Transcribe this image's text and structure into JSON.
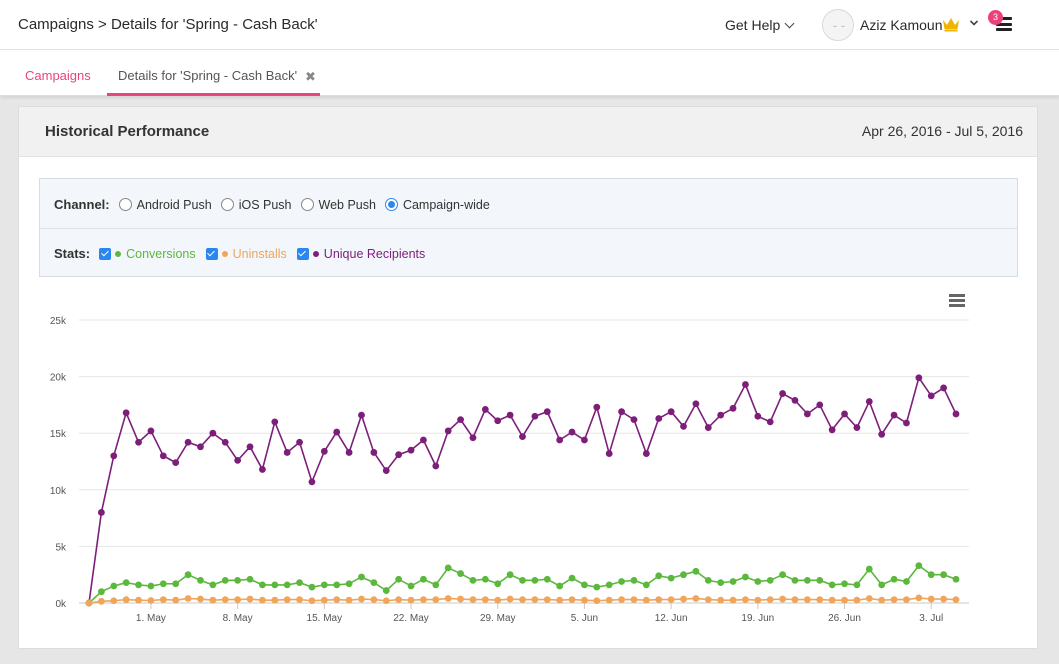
{
  "header": {
    "breadcrumb": "Campaigns > Details for 'Spring - Cash Back'",
    "help_label": "Get Help",
    "user_name": "Aziz Kamoun",
    "notification_count": "3"
  },
  "tabs": [
    {
      "label": "Campaigns"
    },
    {
      "label": "Details for 'Spring - Cash Back'"
    }
  ],
  "card": {
    "title": "Historical Performance",
    "date_range": "Apr 26, 2016 - Jul 5, 2016"
  },
  "filters": {
    "channel_label": "Channel:",
    "channels": [
      {
        "label": "Android Push",
        "selected": false
      },
      {
        "label": "iOS Push",
        "selected": false
      },
      {
        "label": "Web Push",
        "selected": false
      },
      {
        "label": "Campaign-wide",
        "selected": true
      }
    ],
    "stats_label": "Stats:",
    "stats": [
      {
        "label": "Conversions",
        "color": "#5bb83c",
        "checked": true
      },
      {
        "label": "Uninstalls",
        "color": "#f0a65a",
        "checked": true
      },
      {
        "label": "Unique Recipients",
        "color": "#7d1f7a",
        "checked": true
      }
    ]
  },
  "colors": {
    "accent": "#e8457a",
    "radio": "#2b87f0"
  },
  "chart_data": {
    "type": "line",
    "x_start": "2016-04-26",
    "y_ticks": [
      "0k",
      "5k",
      "10k",
      "15k",
      "20k",
      "25k"
    ],
    "ylim": [
      0,
      25000
    ],
    "x_ticks": [
      {
        "label": "1. May",
        "date": "2016-05-01"
      },
      {
        "label": "8. May",
        "date": "2016-05-08"
      },
      {
        "label": "15. May",
        "date": "2016-05-15"
      },
      {
        "label": "22. May",
        "date": "2016-05-22"
      },
      {
        "label": "29. May",
        "date": "2016-05-29"
      },
      {
        "label": "5. Jun",
        "date": "2016-06-05"
      },
      {
        "label": "12. Jun",
        "date": "2016-06-12"
      },
      {
        "label": "19. Jun",
        "date": "2016-06-19"
      },
      {
        "label": "26. Jun",
        "date": "2016-06-26"
      },
      {
        "label": "3. Jul",
        "date": "2016-07-03"
      }
    ],
    "series": [
      {
        "name": "Unique Recipients",
        "color": "#7d1f7a",
        "values": [
          0,
          8000,
          13000,
          16800,
          14200,
          15200,
          13000,
          12400,
          14200,
          13800,
          15000,
          14200,
          12600,
          13800,
          11800,
          16000,
          13300,
          14200,
          10700,
          13400,
          15100,
          13300,
          16600,
          13300,
          11700,
          13100,
          13500,
          14400,
          12100,
          15200,
          16200,
          14600,
          17100,
          16100,
          16600,
          14700,
          16500,
          16900,
          14400,
          15100,
          14400,
          17300,
          13200,
          16900,
          16200,
          13200,
          16300,
          16900,
          15600,
          17600,
          15500,
          16600,
          17200,
          19300,
          16500,
          16000,
          18500,
          17900,
          16700,
          17500,
          15300,
          16700,
          15500,
          17800,
          14900,
          16600,
          15900,
          19900,
          18300,
          19000,
          16700
        ]
      },
      {
        "name": "Conversions",
        "color": "#5bb83c",
        "values": [
          0,
          1000,
          1500,
          1800,
          1600,
          1500,
          1700,
          1700,
          2500,
          2000,
          1600,
          2000,
          2000,
          2100,
          1600,
          1600,
          1600,
          1800,
          1400,
          1600,
          1600,
          1700,
          2300,
          1800,
          1100,
          2100,
          1500,
          2100,
          1600,
          3100,
          2600,
          2000,
          2100,
          1700,
          2500,
          2000,
          2000,
          2100,
          1500,
          2200,
          1600,
          1400,
          1600,
          1900,
          2000,
          1600,
          2400,
          2200,
          2500,
          2800,
          2000,
          1800,
          1900,
          2300,
          1900,
          2000,
          2500,
          2000,
          2000,
          2000,
          1600,
          1700,
          1600,
          3000,
          1600,
          2100,
          1900,
          3300,
          2500,
          2500,
          2100
        ]
      },
      {
        "name": "Uninstalls",
        "color": "#f0a65a",
        "values": [
          0,
          150,
          200,
          300,
          250,
          220,
          300,
          250,
          400,
          350,
          250,
          300,
          300,
          350,
          250,
          250,
          300,
          300,
          200,
          250,
          300,
          250,
          350,
          300,
          200,
          300,
          250,
          300,
          300,
          400,
          350,
          300,
          300,
          250,
          350,
          300,
          300,
          300,
          250,
          300,
          250,
          200,
          250,
          300,
          300,
          250,
          300,
          300,
          350,
          400,
          300,
          250,
          250,
          300,
          250,
          300,
          350,
          300,
          300,
          300,
          250,
          250,
          250,
          400,
          250,
          300,
          300,
          450,
          350,
          350,
          300
        ]
      }
    ]
  }
}
